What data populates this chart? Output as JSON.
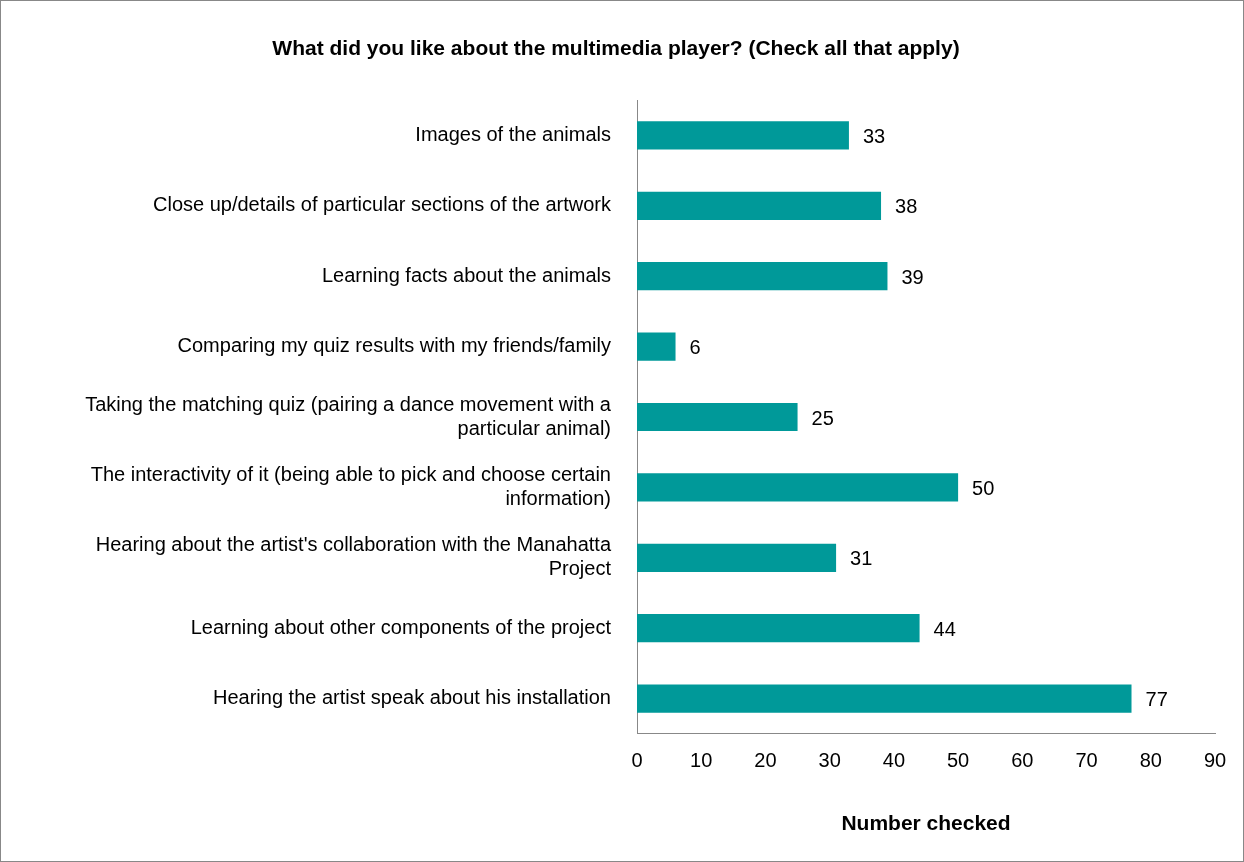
{
  "chart_data": {
    "type": "bar",
    "orientation": "horizontal",
    "title": "What did you like about the multimedia player? (Check all that apply)",
    "xlabel": "Number checked",
    "categories": [
      "Images of the animals",
      "Close up/details of particular sections of the artwork",
      "Learning facts about the animals",
      "Comparing my quiz results with my friends/family",
      "Taking the matching quiz (pairing a dance movement with a particular animal)",
      "The interactivity of it (being able to pick and choose certain information)",
      "Hearing about the artist's collaboration with the Manahatta Project",
      "Learning about other components of the project",
      "Hearing the artist speak about his installation"
    ],
    "values": [
      33,
      38,
      39,
      6,
      25,
      50,
      31,
      44,
      77
    ],
    "color": "#009999",
    "xlim": [
      0,
      90
    ],
    "xticks": [
      0,
      10,
      20,
      30,
      40,
      50,
      60,
      70,
      80,
      90
    ],
    "data_labels": true,
    "grid": false,
    "legend": false
  }
}
